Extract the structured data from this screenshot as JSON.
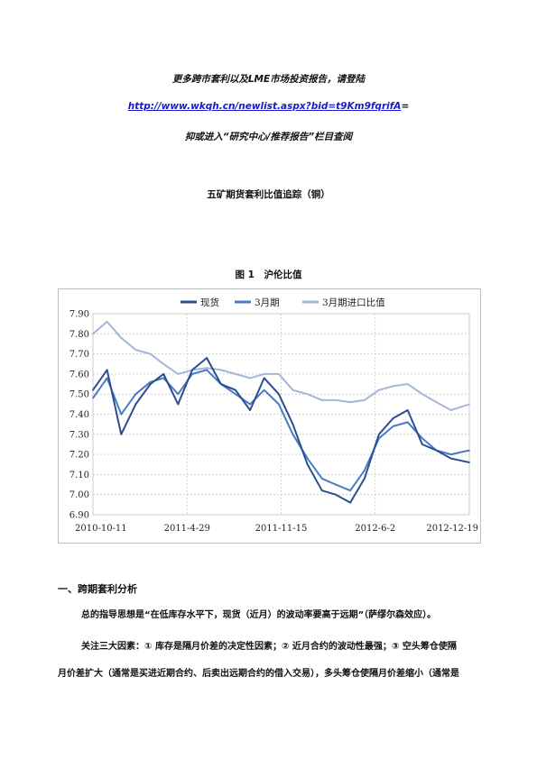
{
  "header": {
    "line1": "更多跨市套利以及LME市场投资报告，请登陆",
    "link": "http://www.wkqh.cn/newlist.aspx?bid=t9Km9fqrifA",
    "link_tail": "=",
    "line3": "抑或进入“研究中心/推荐报告”栏目查阅"
  },
  "doc_title": "五矿期货套利比值追踪（铜）",
  "figure_caption": "图 1　沪伦比值",
  "chart_data": {
    "type": "line",
    "title": "",
    "xlabel": "",
    "ylabel": "",
    "ylim": [
      6.9,
      7.9
    ],
    "yticks": [
      "7.90",
      "7.80",
      "7.70",
      "7.60",
      "7.50",
      "7.40",
      "7.30",
      "7.20",
      "7.10",
      "7.00",
      "6.90"
    ],
    "xticks": [
      "2010-10-11",
      "2011-4-29",
      "2011-11-15",
      "2012-6-2",
      "2012-12-19"
    ],
    "grid": true,
    "legend_position": "top",
    "series": [
      {
        "name": "现货",
        "color": "#2b4f8c",
        "x": [
          "2010-10-11",
          "2010-11-10",
          "2010-12-10",
          "2011-1-10",
          "2011-2-10",
          "2011-3-10",
          "2011-4-10",
          "2011-5-10",
          "2011-6-10",
          "2011-7-10",
          "2011-8-10",
          "2011-9-10",
          "2011-10-10",
          "2011-11-10",
          "2011-12-10",
          "2012-1-10",
          "2012-2-10",
          "2012-3-10",
          "2012-4-10",
          "2012-5-10",
          "2012-6-10",
          "2012-7-10",
          "2012-8-10",
          "2012-9-10",
          "2012-10-10",
          "2012-11-10",
          "2012-12-19"
        ],
        "values": [
          7.52,
          7.62,
          7.3,
          7.45,
          7.55,
          7.6,
          7.45,
          7.62,
          7.68,
          7.55,
          7.52,
          7.42,
          7.58,
          7.5,
          7.35,
          7.15,
          7.02,
          7.0,
          6.96,
          7.08,
          7.3,
          7.38,
          7.42,
          7.25,
          7.22,
          7.18,
          7.16
        ]
      },
      {
        "name": "3月期",
        "color": "#4a7bc4",
        "x": [
          "2010-10-11",
          "2010-11-10",
          "2010-12-10",
          "2011-1-10",
          "2011-2-10",
          "2011-3-10",
          "2011-4-10",
          "2011-5-10",
          "2011-6-10",
          "2011-7-10",
          "2011-8-10",
          "2011-9-10",
          "2011-10-10",
          "2011-11-10",
          "2011-12-10",
          "2012-1-10",
          "2012-2-10",
          "2012-3-10",
          "2012-4-10",
          "2012-5-10",
          "2012-6-10",
          "2012-7-10",
          "2012-8-10",
          "2012-9-10",
          "2012-10-10",
          "2012-11-10",
          "2012-12-19"
        ],
        "values": [
          7.48,
          7.58,
          7.4,
          7.5,
          7.56,
          7.58,
          7.5,
          7.6,
          7.62,
          7.55,
          7.5,
          7.45,
          7.52,
          7.45,
          7.3,
          7.18,
          7.08,
          7.05,
          7.02,
          7.12,
          7.28,
          7.34,
          7.36,
          7.28,
          7.22,
          7.2,
          7.22
        ]
      },
      {
        "name": "3月期进口比值",
        "color": "#a3b6d6",
        "x": [
          "2010-10-11",
          "2010-11-10",
          "2010-12-10",
          "2011-1-10",
          "2011-2-10",
          "2011-3-10",
          "2011-4-10",
          "2011-5-10",
          "2011-6-10",
          "2011-7-10",
          "2011-8-10",
          "2011-9-10",
          "2011-10-10",
          "2011-11-10",
          "2011-12-10",
          "2012-1-10",
          "2012-2-10",
          "2012-3-10",
          "2012-4-10",
          "2012-5-10",
          "2012-6-10",
          "2012-7-10",
          "2012-8-10",
          "2012-9-10",
          "2012-10-10",
          "2012-11-10",
          "2012-12-19"
        ],
        "values": [
          7.8,
          7.86,
          7.78,
          7.72,
          7.7,
          7.65,
          7.6,
          7.62,
          7.63,
          7.62,
          7.6,
          7.58,
          7.6,
          7.6,
          7.52,
          7.5,
          7.47,
          7.47,
          7.46,
          7.47,
          7.52,
          7.54,
          7.55,
          7.5,
          7.46,
          7.42,
          7.45
        ]
      }
    ]
  },
  "section": {
    "heading": "一、跨期套利分析",
    "para1": "总的指导思想是“在低库存水平下，现货（近月）的波动率要高于远期”（萨缪尔森效应）。",
    "para2_line1": "关注三大因素：① 库存是隔月价差的决定性因素；② 近月合约的波动性最强；③ 空头筹仓使隔",
    "para2_line2": "月价差扩大（通常是买进近期合约、后卖出远期合约的借入交易），多头筹仓使隔月价差缩小（通常是"
  }
}
